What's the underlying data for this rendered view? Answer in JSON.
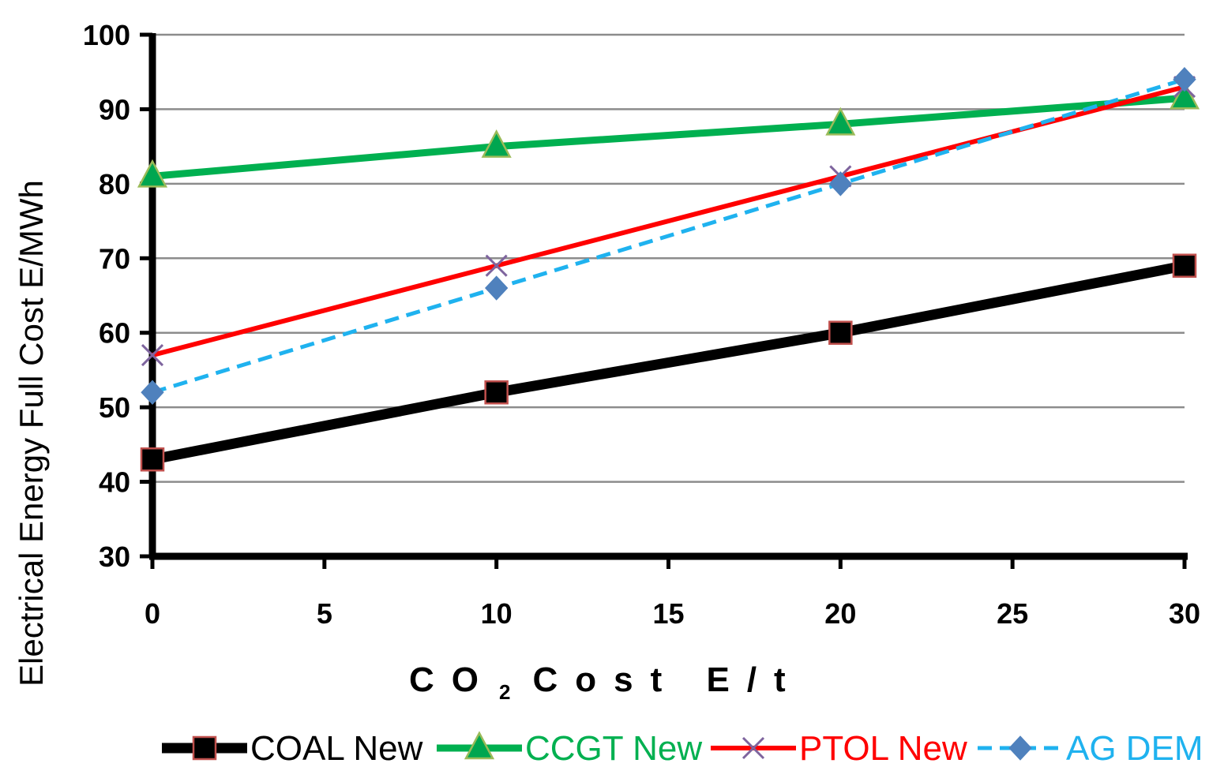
{
  "chart_data": {
    "type": "line",
    "x": [
      0,
      10,
      20,
      30
    ],
    "xticks": [
      0,
      5,
      10,
      15,
      20,
      25,
      30
    ],
    "yticks": [
      30,
      40,
      50,
      60,
      70,
      80,
      90,
      100
    ],
    "xlim": [
      0,
      30
    ],
    "ylim": [
      30,
      100
    ],
    "grid": "horizontal",
    "legend_position": "bottom",
    "xlabel": "CO",
    "xlabel_subscript": "2",
    "xlabel_suffix": "Cost  E/t",
    "ylabel": "Electrical Energy Full Cost   E/MWh",
    "series": [
      {
        "name": "COAL New",
        "values": [
          43,
          52,
          60,
          69
        ],
        "color": "#000000",
        "marker": "square",
        "dashed": false
      },
      {
        "name": "CCGT New",
        "values": [
          81,
          85,
          88,
          91.5
        ],
        "color": "#00b050",
        "marker": "triangle",
        "dashed": false
      },
      {
        "name": "PTOL New",
        "values": [
          57,
          69,
          81,
          93
        ],
        "color": "#ff0000",
        "marker": "x",
        "dashed": false
      },
      {
        "name": "AG DEM",
        "values": [
          52,
          66,
          80,
          94
        ],
        "color": "#1fb2ef",
        "marker": "diamond",
        "dashed": true
      }
    ]
  }
}
